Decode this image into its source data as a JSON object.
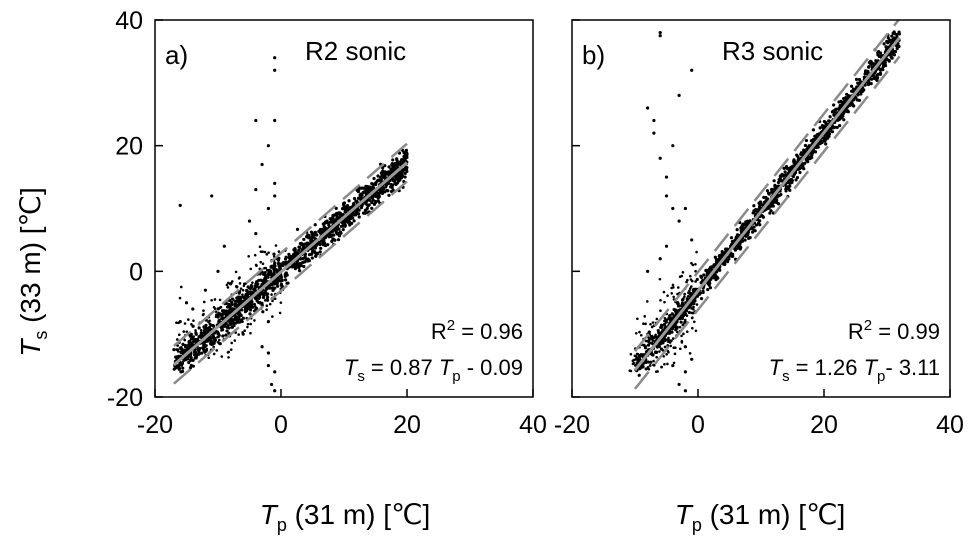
{
  "chart_data": [
    {
      "type": "scatter",
      "panel_label": "a)",
      "title": "R2 sonic",
      "xlim": [
        -20,
        40
      ],
      "ylim": [
        -20,
        40
      ],
      "xticks": [
        -20,
        0,
        20,
        40
      ],
      "yticks": [
        -20,
        0,
        20,
        40
      ],
      "x_tick_labels": [
        "-20",
        "0",
        "20",
        "40"
      ],
      "y_tick_labels": [
        "-20",
        "0",
        "20",
        "40"
      ],
      "r2_label": "R",
      "r2_exp": "2",
      "r2_value": " = 0.96",
      "eq_ts": "T",
      "eq_ts_sub": "s",
      "eq_mid": " = 0.87 ",
      "eq_tp": "T",
      "eq_tp_sub": "p",
      "eq_end": " - 0.09",
      "fit": {
        "slope": 0.87,
        "intercept": -0.09,
        "x_range": [
          -17,
          20
        ]
      },
      "r2": 0.96,
      "confidence_offset": 3,
      "point_color": "#000000",
      "fit_color": "#9a9a9a",
      "band_color": "#8a8a8a",
      "points": {
        "main": {
          "x_range": [
            -17,
            20
          ],
          "slope": 0.87,
          "intercept": -0.09,
          "spread": 1.2,
          "count": 1400
        },
        "outliers": [
          [
            -1,
            34
          ],
          [
            -1,
            32
          ],
          [
            -1,
            24
          ],
          [
            -4,
            24
          ],
          [
            -16,
            10.5
          ],
          [
            -11,
            12
          ],
          [
            -1,
            -19
          ],
          [
            -1.5,
            -18
          ],
          [
            -1,
            -16
          ],
          [
            -2,
            -15
          ],
          [
            -2,
            -13
          ],
          [
            -3,
            17
          ],
          [
            -4,
            13
          ],
          [
            -2,
            20
          ],
          [
            -5,
            8
          ],
          [
            -9,
            4
          ],
          [
            -12,
            -3
          ],
          [
            -15,
            -5
          ],
          [
            -6,
            -10
          ],
          [
            -3,
            -12
          ],
          [
            -2,
            -8
          ],
          [
            -1,
            12
          ],
          [
            -1,
            14
          ],
          [
            -2,
            10
          ],
          [
            -4,
            6
          ],
          [
            -8,
            -2
          ],
          [
            -10,
            0
          ],
          [
            -14,
            -6
          ],
          [
            -16,
            -8
          ],
          [
            -13,
            -9
          ]
        ],
        "cloud": {
          "x_range": [
            -17,
            0
          ],
          "y_range": [
            -14,
            8
          ],
          "count": 350
        }
      }
    },
    {
      "type": "scatter",
      "panel_label": "b)",
      "title": "R3 sonic",
      "xlim": [
        -20,
        40
      ],
      "ylim": [
        -20,
        40
      ],
      "xticks": [
        -20,
        0,
        20,
        40
      ],
      "yticks": [
        -20,
        0,
        20,
        40
      ],
      "x_tick_labels": [
        "-20",
        "0",
        "20",
        "40"
      ],
      "y_tick_labels": [
        "-20",
        "0",
        "20",
        "40"
      ],
      "r2_label": "R",
      "r2_exp": "2",
      "r2_value": " = 0.99",
      "eq_ts": "T",
      "eq_ts_sub": "s",
      "eq_mid": " = 1.26 ",
      "eq_tp": "T",
      "eq_tp_sub": "p",
      "eq_end": "- 3.11",
      "fit": {
        "slope": 1.26,
        "intercept": -3.11,
        "x_range": [
          -10,
          32
        ]
      },
      "r2": 0.99,
      "confidence_offset": 3,
      "point_color": "#000000",
      "fit_color": "#9a9a9a",
      "band_color": "#8a8a8a",
      "points": {
        "main": {
          "x_range": [
            -10,
            32
          ],
          "slope": 1.26,
          "intercept": -3.11,
          "spread": 0.9,
          "count": 1400
        },
        "outliers": [
          [
            -6,
            38
          ],
          [
            -6,
            37.5
          ],
          [
            -8,
            26
          ],
          [
            -7,
            22
          ],
          [
            -6,
            18
          ],
          [
            -5,
            15
          ],
          [
            -5,
            12
          ],
          [
            -7,
            24
          ],
          [
            -4,
            10
          ],
          [
            -2,
            10
          ],
          [
            -3,
            8
          ],
          [
            -1,
            5
          ],
          [
            -2,
            -19
          ],
          [
            -3,
            -18
          ],
          [
            -2,
            -16
          ],
          [
            -4,
            -15
          ],
          [
            -1,
            -14
          ],
          [
            -2,
            -12
          ],
          [
            -5,
            4
          ],
          [
            -6,
            2
          ],
          [
            -8,
            0
          ],
          [
            -3,
            28
          ],
          [
            -4,
            20
          ],
          [
            -1,
            32
          ]
        ],
        "cloud": {
          "x_range": [
            -11,
            0
          ],
          "y_range": [
            -16,
            8
          ],
          "count": 300
        }
      }
    }
  ],
  "shared_axes": {
    "ylabel_main": "T",
    "ylabel_sub": "s",
    "ylabel_rest": " (33 m) [℃]",
    "xlabel_main": "T",
    "xlabel_sub": "p",
    "xlabel_rest": " (31 m) [℃]"
  }
}
